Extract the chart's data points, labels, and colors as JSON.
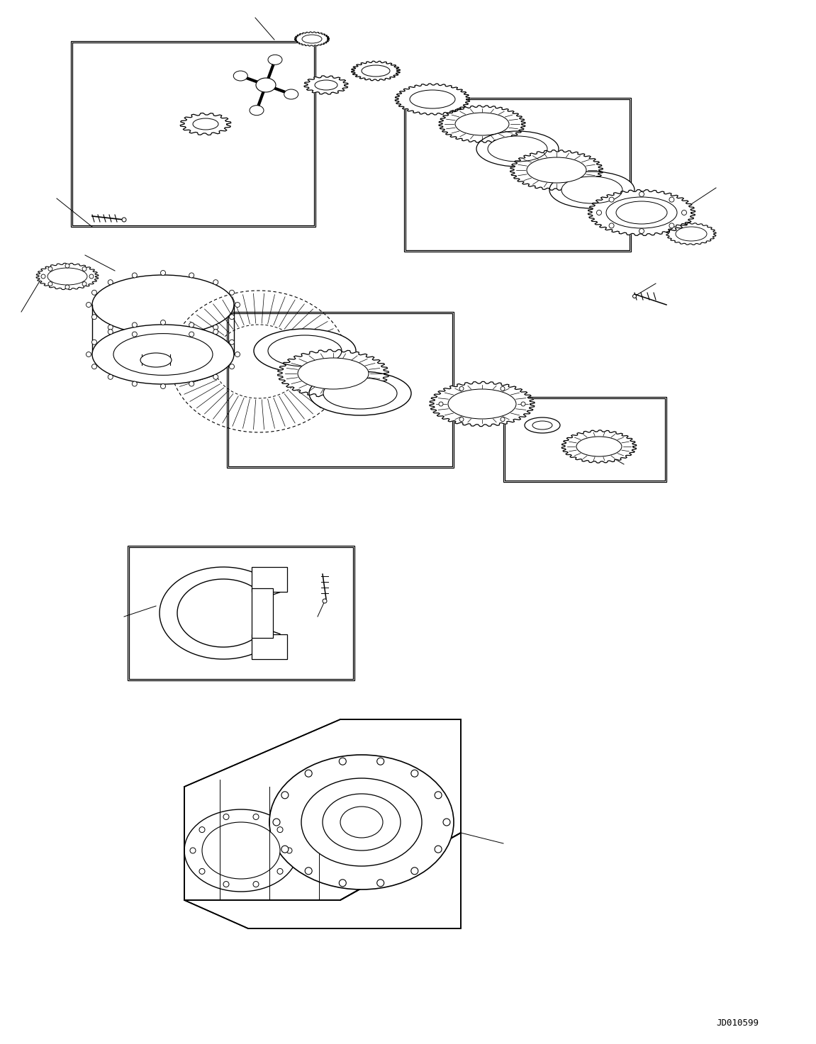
{
  "figure_width": 11.51,
  "figure_height": 14.73,
  "background_color": "#ffffff",
  "watermark_text": "JD010599",
  "watermark_fontsize": 9,
  "watermark_fontfamily": "monospace",
  "watermark_color": "#000000",
  "line_color": "#000000",
  "dpi": 100
}
